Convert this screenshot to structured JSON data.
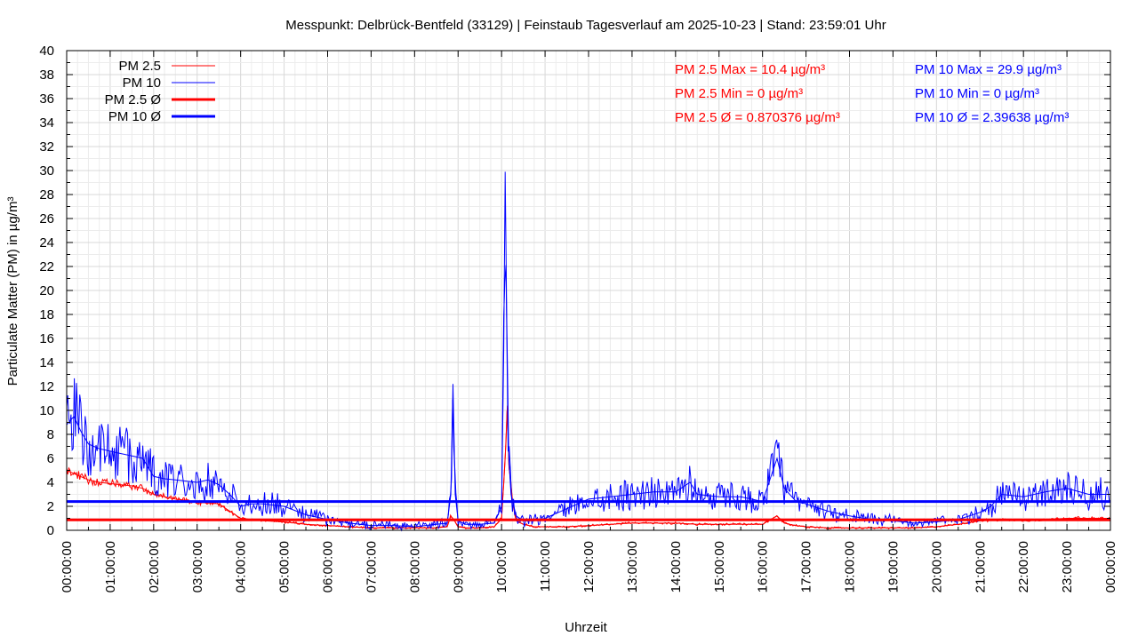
{
  "chart_data": {
    "type": "line",
    "title": "Messpunkt: Delbrück-Bentfeld (33129) | Feinstaub Tagesverlauf am 2025-10-23 | Stand: 23:59:01 Uhr",
    "xlabel": "Uhrzeit",
    "ylabel": "Particulate Matter (PM) in µg/m³",
    "xlim": [
      "00:00:00",
      "24:00:00"
    ],
    "ylim": [
      0,
      40
    ],
    "grid": true,
    "legend_position": "top-left",
    "x_tick_labels": [
      "00:00:00",
      "01:00:00",
      "02:00:00",
      "03:00:00",
      "04:00:00",
      "05:00:00",
      "06:00:00",
      "07:00:00",
      "08:00:00",
      "09:00:00",
      "10:00:00",
      "11:00:00",
      "12:00:00",
      "13:00:00",
      "14:00:00",
      "15:00:00",
      "16:00:00",
      "17:00:00",
      "18:00:00",
      "19:00:00",
      "20:00:00",
      "21:00:00",
      "22:00:00",
      "23:00:00",
      "00:00:00"
    ],
    "y_tick_labels": [
      "0",
      "2",
      "4",
      "6",
      "8",
      "10",
      "12",
      "14",
      "16",
      "18",
      "20",
      "22",
      "24",
      "26",
      "28",
      "30",
      "32",
      "34",
      "36",
      "38",
      "40"
    ],
    "series": [
      {
        "name": "PM 2.5",
        "color": "#ff0000",
        "x": [
          "00:00",
          "00:15",
          "00:30",
          "00:45",
          "01:00",
          "01:15",
          "01:30",
          "01:45",
          "02:00",
          "02:15",
          "02:30",
          "02:45",
          "03:00",
          "03:15",
          "03:30",
          "03:45",
          "04:00",
          "04:30",
          "05:00",
          "05:30",
          "06:00",
          "06:30",
          "07:00",
          "07:30",
          "08:00",
          "08:30",
          "08:45",
          "08:50",
          "08:55",
          "09:00",
          "09:10",
          "09:30",
          "09:50",
          "10:00",
          "10:05",
          "10:08",
          "10:10",
          "10:15",
          "10:20",
          "10:30",
          "10:45",
          "11:00",
          "11:30",
          "12:00",
          "12:30",
          "13:00",
          "13:30",
          "14:00",
          "14:30",
          "15:00",
          "15:30",
          "16:00",
          "16:20",
          "16:30",
          "16:45",
          "17:00",
          "17:30",
          "18:00",
          "18:30",
          "19:00",
          "19:30",
          "20:00",
          "20:30",
          "21:00",
          "21:30",
          "22:00",
          "22:30",
          "23:00",
          "23:30",
          "23:59"
        ],
        "values": [
          5.0,
          4.6,
          4.2,
          4.0,
          3.9,
          3.8,
          3.7,
          3.5,
          3.0,
          2.8,
          2.6,
          2.5,
          2.3,
          2.3,
          2.2,
          1.6,
          1.0,
          0.8,
          0.7,
          0.5,
          0.4,
          0.3,
          0.2,
          0.2,
          0.2,
          0.2,
          0.3,
          1.2,
          0.8,
          0.3,
          0.2,
          0.2,
          0.3,
          1.0,
          6.0,
          10.4,
          5.5,
          2.5,
          0.8,
          0.5,
          0.3,
          0.3,
          0.3,
          0.4,
          0.5,
          0.6,
          0.6,
          0.6,
          0.5,
          0.5,
          0.5,
          0.5,
          1.2,
          0.6,
          0.4,
          0.3,
          0.2,
          0.2,
          0.2,
          0.2,
          0.2,
          0.3,
          0.5,
          0.8,
          0.9,
          0.8,
          0.9,
          1.0,
          1.0,
          1.0
        ]
      },
      {
        "name": "PM 10",
        "color": "#0000ff",
        "x": [
          "00:00",
          "00:10",
          "00:20",
          "00:30",
          "00:45",
          "01:00",
          "01:15",
          "01:30",
          "01:45",
          "02:00",
          "02:15",
          "02:30",
          "02:45",
          "03:00",
          "03:15",
          "03:30",
          "03:45",
          "04:00",
          "04:15",
          "04:30",
          "05:00",
          "05:30",
          "06:00",
          "06:30",
          "07:00",
          "07:30",
          "08:00",
          "08:30",
          "08:45",
          "08:50",
          "08:53",
          "08:56",
          "09:00",
          "09:10",
          "09:30",
          "09:50",
          "10:00",
          "10:03",
          "10:05",
          "10:07",
          "10:10",
          "10:13",
          "10:20",
          "10:30",
          "10:45",
          "11:00",
          "11:30",
          "12:00",
          "12:30",
          "13:00",
          "13:30",
          "14:00",
          "14:20",
          "14:30",
          "15:00",
          "15:30",
          "16:00",
          "16:20",
          "16:30",
          "16:45",
          "17:00",
          "17:30",
          "18:00",
          "18:30",
          "19:00",
          "19:30",
          "20:00",
          "20:30",
          "21:00",
          "21:15",
          "21:30",
          "22:00",
          "22:30",
          "23:00",
          "23:30",
          "23:59"
        ],
        "values": [
          8.8,
          9.5,
          8.2,
          7.2,
          6.8,
          6.6,
          6.4,
          6.2,
          6.0,
          4.5,
          4.3,
          4.2,
          4.1,
          4.0,
          4.2,
          3.8,
          3.0,
          2.0,
          2.2,
          2.2,
          2.0,
          1.3,
          0.9,
          0.6,
          0.4,
          0.4,
          0.3,
          0.5,
          0.6,
          3.0,
          12.2,
          3.0,
          0.8,
          0.5,
          0.5,
          0.6,
          2.0,
          15.0,
          29.9,
          18.0,
          6.0,
          3.0,
          1.2,
          0.8,
          0.8,
          1.0,
          1.8,
          2.6,
          2.8,
          3.0,
          3.2,
          3.2,
          4.0,
          3.0,
          2.8,
          2.8,
          2.4,
          6.0,
          3.5,
          2.5,
          2.2,
          1.6,
          1.2,
          0.9,
          0.8,
          0.6,
          0.7,
          0.9,
          1.5,
          2.0,
          3.0,
          2.8,
          3.2,
          3.5,
          3.0,
          3.0
        ]
      },
      {
        "name": "PM 2.5 Ø",
        "color": "#ff0000",
        "constant": 0.870376
      },
      {
        "name": "PM 10 Ø",
        "color": "#0000ff",
        "constant": 2.39638
      }
    ],
    "annotations": {
      "pm25": {
        "color": "#ff0000",
        "max": "PM 2.5 Max = 10.4 µg/m³",
        "min": "PM 2.5 Min = 0 µg/m³",
        "avg": "PM 2.5 Ø = 0.870376 µg/m³"
      },
      "pm10": {
        "color": "#0000ff",
        "max": "PM 10 Max = 29.9 µg/m³",
        "min": "PM 10 Min = 0 µg/m³",
        "avg": "PM 10 Ø = 2.39638 µg/m³"
      }
    }
  }
}
